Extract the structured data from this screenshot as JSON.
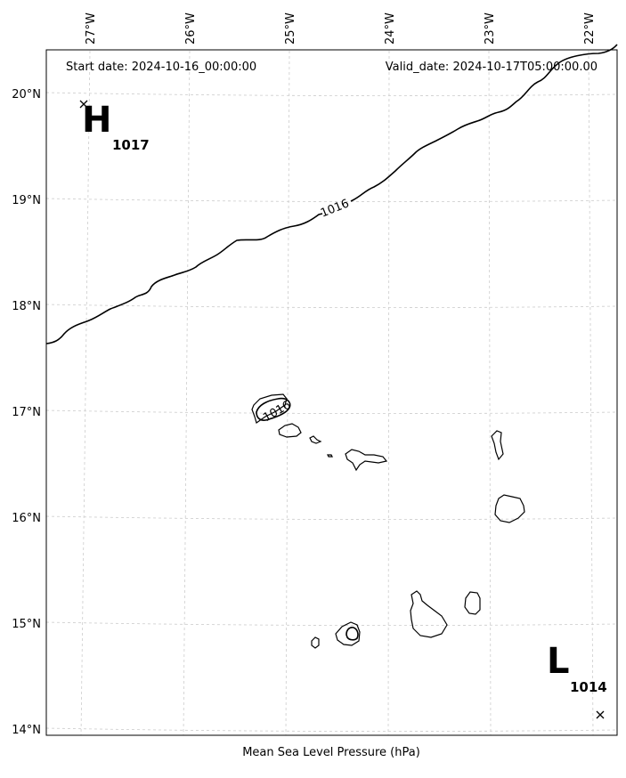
{
  "header": {
    "start_date": "Start date: 2024-10-16_00:00:00",
    "valid_date": "Valid_date: 2024-10-17T05:00:00.00"
  },
  "xlabel": "Mean Sea Level Pressure (hPa)",
  "lon_ticks": [
    "27°W",
    "26°W",
    "25°W",
    "24°W",
    "23°W",
    "22°W"
  ],
  "lat_ticks": [
    "20°N",
    "19°N",
    "18°N",
    "17°N",
    "16°N",
    "15°N",
    "14°N"
  ],
  "high": {
    "letter": "H",
    "value": "1017"
  },
  "low": {
    "letter": "L",
    "value": "1014"
  },
  "contours": {
    "main_label": "1016",
    "island_label": "1016"
  }
}
